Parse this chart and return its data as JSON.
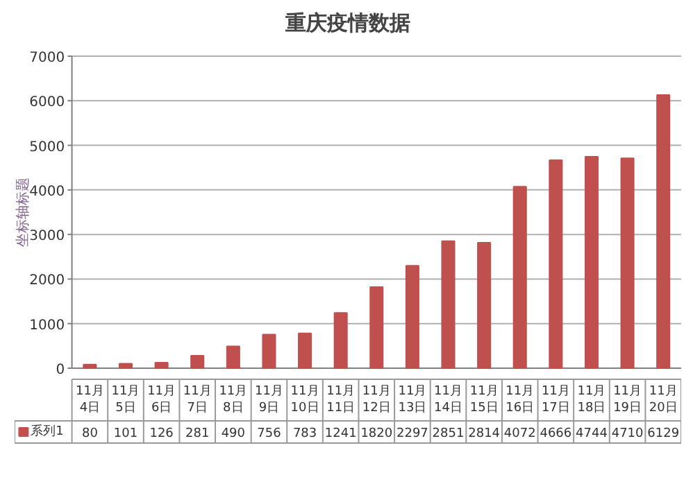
{
  "chart_data": {
    "type": "bar",
    "title": "重庆疫情数据",
    "ylabel": "坐标轴标题",
    "categories": [
      "11月4日",
      "11月5日",
      "11月6日",
      "11月7日",
      "11月8日",
      "11月9日",
      "11月10日",
      "11月11日",
      "11月12日",
      "11月13日",
      "11月14日",
      "11月15日",
      "11月16日",
      "11月17日",
      "11月18日",
      "11月19日",
      "11月20日"
    ],
    "series": [
      {
        "name": "系列1",
        "color": "#c0504d",
        "values": [
          80,
          101,
          126,
          281,
          490,
          756,
          783,
          1241,
          1820,
          2297,
          2851,
          2814,
          4072,
          4666,
          4744,
          4710,
          6129
        ]
      }
    ],
    "ylim": [
      0,
      7000
    ],
    "yticks": [
      0,
      1000,
      2000,
      3000,
      4000,
      5000,
      6000,
      7000
    ],
    "grid": "y",
    "legend": "bottom left",
    "data_labels": true
  }
}
